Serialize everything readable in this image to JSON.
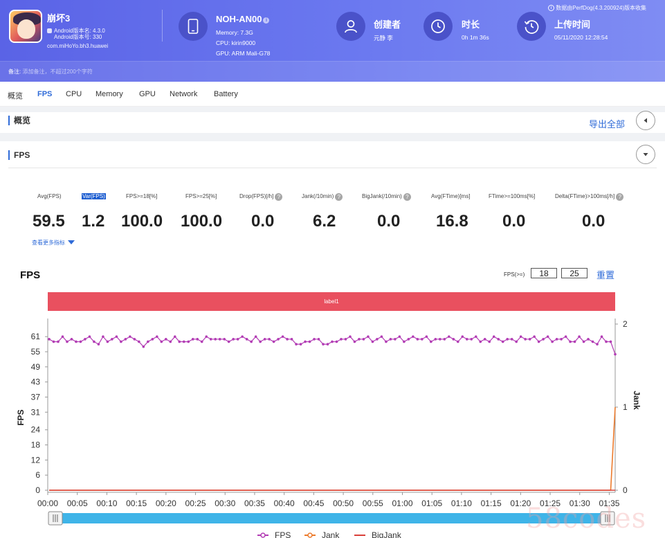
{
  "header": {
    "app_name": "崩坏3",
    "android_version": "Android版本名: 4.3.0",
    "android_build": "Android版本号: 330",
    "package": "com.miHoYo.bh3.huawei",
    "device_name": "NOH-AN00",
    "memory": "Memory: 7.3G",
    "cpu": "CPU: kirin9000",
    "gpu": "GPU: ARM Mali-G78",
    "creator_title": "创建者",
    "creator_value": "元静 李",
    "duration_title": "时长",
    "duration_value": "0h 1m 36s",
    "upload_title": "上传时间",
    "upload_value": "05/11/2020 12:28:54",
    "source_note": "数据由PerfDog(4.3.200924)版本收集",
    "remark_label": "备注:",
    "remark_placeholder": "添加备注，不超过200个字符"
  },
  "tabs": [
    "概览",
    "FPS",
    "CPU",
    "Memory",
    "GPU",
    "Network",
    "Battery"
  ],
  "active_tab": "FPS",
  "overview": {
    "title": "概览",
    "export": "导出全部"
  },
  "fps_section": {
    "title": "FPS",
    "more_metrics": "查看更多指标"
  },
  "metrics": [
    {
      "label": "Avg(FPS)",
      "value": "59.5"
    },
    {
      "label": "Var(FPS)",
      "value": "1.2"
    },
    {
      "label": "FPS>=18[%]",
      "value": "100.0"
    },
    {
      "label": "FPS>=25[%]",
      "value": "100.0"
    },
    {
      "label": "Drop(FPS)[/h]",
      "value": "0.0"
    },
    {
      "label": "Jank(/10min)",
      "value": "6.2"
    },
    {
      "label": "BigJank(/10min)",
      "value": "0.0"
    },
    {
      "label": "Avg(FTime)[ms]",
      "value": "16.8"
    },
    {
      "label": "FTime>=100ms[%]",
      "value": "0.0"
    },
    {
      "label": "Delta(FTime)>100ms[/h]",
      "value": "0.0"
    }
  ],
  "chart_controls": {
    "title": "FPS",
    "threshold_label": "FPS(>=)",
    "threshold_1": "18",
    "threshold_2": "25",
    "reset": "重置",
    "label_bar": "label1"
  },
  "chart_data": {
    "type": "line",
    "ylabel": "FPS",
    "ylabel_right": "Jank",
    "yticks": [
      "61",
      "55",
      "49",
      "43",
      "37",
      "31",
      "24",
      "18",
      "12",
      "6",
      "0"
    ],
    "ylim": [
      0,
      66
    ],
    "yticks_right": [
      "2",
      "1",
      "0"
    ],
    "ylim_right": [
      0,
      2
    ],
    "x_ticks": [
      "00:00",
      "00:05",
      "00:10",
      "00:15",
      "00:20",
      "00:25",
      "00:30",
      "00:35",
      "00:40",
      "00:45",
      "00:50",
      "00:55",
      "01:00",
      "01:05",
      "01:10",
      "01:15",
      "01:20",
      "01:25",
      "01:30",
      "01:35"
    ],
    "x_range_seconds": [
      0,
      96
    ],
    "grid": false,
    "legend_position": "bottom",
    "series": [
      {
        "name": "FPS",
        "color": "#b23cb4",
        "axis": "left",
        "values": [
          60,
          59,
          59,
          61,
          59,
          60,
          59,
          59,
          60,
          61,
          59,
          58,
          61,
          59,
          60,
          61,
          59,
          60,
          61,
          60,
          59,
          57,
          59,
          60,
          61,
          59,
          60,
          59,
          61,
          59,
          59,
          59,
          60,
          60,
          59,
          61,
          60,
          60,
          60,
          60,
          59,
          60,
          60,
          61,
          60,
          59,
          61,
          59,
          60,
          60,
          59,
          60,
          61,
          60,
          60,
          58,
          58,
          59,
          59,
          60,
          60,
          58,
          58,
          59,
          59,
          60,
          60,
          61,
          59,
          60,
          60,
          61,
          59,
          60,
          61,
          59,
          60,
          60,
          61,
          59,
          60,
          61,
          60,
          60,
          61,
          59,
          60,
          60,
          60,
          61,
          60,
          59,
          61,
          60,
          60,
          61,
          59,
          60,
          59,
          61,
          60,
          59,
          60,
          60,
          59,
          61,
          60,
          60,
          61,
          59,
          60,
          61,
          59,
          60,
          60,
          61,
          59,
          59,
          61,
          59,
          60,
          59,
          58,
          61,
          59,
          59,
          54
        ]
      },
      {
        "name": "Jank",
        "color": "#ec7a2c",
        "axis": "right",
        "values": [
          0,
          0,
          0,
          0,
          0,
          0,
          0,
          0,
          0,
          0,
          0,
          0,
          0,
          0,
          0,
          0,
          0,
          0,
          0,
          0,
          0,
          0,
          0,
          0,
          0,
          0,
          0,
          0,
          0,
          0,
          0,
          0,
          0,
          0,
          0,
          0,
          0,
          0,
          0,
          0,
          0,
          0,
          0,
          0,
          0,
          0,
          0,
          0,
          0,
          0,
          0,
          0,
          0,
          0,
          0,
          0,
          0,
          0,
          0,
          0,
          0,
          0,
          0,
          0,
          0,
          0,
          0,
          0,
          0,
          0,
          0,
          0,
          0,
          0,
          0,
          0,
          0,
          0,
          0,
          0,
          0,
          0,
          0,
          0,
          0,
          0,
          0,
          0,
          0,
          0,
          0,
          0,
          0,
          0,
          0,
          0,
          0,
          0,
          0,
          0,
          0,
          0,
          0,
          0,
          0,
          0,
          0,
          0,
          0,
          0,
          0,
          0,
          0,
          0,
          0,
          0,
          0,
          0,
          0,
          0,
          0,
          0,
          0,
          0,
          0,
          0,
          1
        ]
      },
      {
        "name": "BigJank",
        "color": "#d9403a",
        "axis": "right",
        "values": [
          0,
          0,
          0,
          0,
          0,
          0,
          0,
          0,
          0,
          0,
          0,
          0,
          0,
          0,
          0,
          0,
          0,
          0,
          0,
          0,
          0,
          0,
          0,
          0,
          0,
          0,
          0,
          0,
          0,
          0,
          0,
          0,
          0,
          0,
          0,
          0,
          0,
          0,
          0,
          0,
          0,
          0,
          0,
          0,
          0,
          0,
          0,
          0,
          0,
          0,
          0,
          0,
          0,
          0,
          0,
          0,
          0,
          0,
          0,
          0,
          0,
          0,
          0,
          0,
          0,
          0,
          0,
          0,
          0,
          0,
          0,
          0,
          0,
          0,
          0,
          0,
          0,
          0,
          0,
          0,
          0,
          0,
          0,
          0,
          0,
          0,
          0,
          0,
          0,
          0,
          0,
          0,
          0,
          0,
          0,
          0,
          0,
          0,
          0,
          0,
          0,
          0,
          0,
          0,
          0,
          0,
          0,
          0,
          0,
          0,
          0,
          0,
          0,
          0,
          0,
          0,
          0,
          0,
          0,
          0,
          0,
          0,
          0,
          0,
          0,
          0,
          0
        ]
      }
    ]
  },
  "watermark": "58codes",
  "colors": {
    "accent": "#2f6bd8",
    "header": "#6b79f0",
    "label_bar": "#e9505f",
    "slider": "#3fb4e8"
  }
}
